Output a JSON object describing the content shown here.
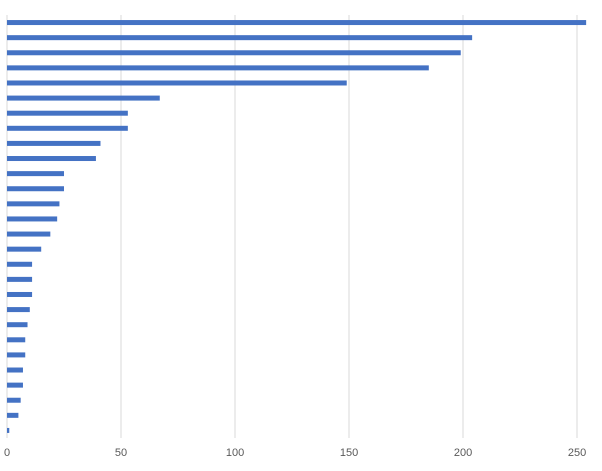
{
  "chart_data": {
    "type": "hbar",
    "categories": [
      null,
      null,
      null,
      null,
      null,
      null,
      null,
      null,
      null,
      null,
      null,
      null,
      null,
      null,
      null,
      null,
      null,
      null,
      null,
      null,
      null,
      null,
      null,
      null,
      null,
      null,
      null,
      null
    ],
    "values": [
      254,
      204,
      199,
      185,
      149,
      67,
      53,
      53,
      41,
      39,
      25,
      25,
      23,
      22,
      19,
      15,
      11,
      11,
      11,
      10,
      9,
      8,
      8,
      7,
      7,
      6,
      5,
      1
    ],
    "color": "#4472c4",
    "xlim": [
      0,
      256
    ],
    "xticks": [
      0,
      50,
      100,
      150,
      200,
      250
    ],
    "grid": true
  }
}
